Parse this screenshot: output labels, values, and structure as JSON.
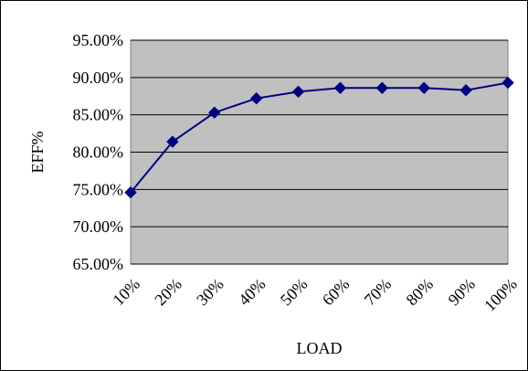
{
  "chart_data": {
    "type": "line",
    "xlabel": "LOAD",
    "ylabel": "EFF%",
    "categories": [
      "10%",
      "20%",
      "30%",
      "40%",
      "50%",
      "60%",
      "70%",
      "80%",
      "90%",
      "100%"
    ],
    "y_ticks": [
      "65.00%",
      "70.00%",
      "75.00%",
      "80.00%",
      "85.00%",
      "90.00%",
      "95.00%"
    ],
    "ylim": [
      65,
      95
    ],
    "grid": true,
    "plot_background": "#c0c0c0",
    "series": [
      {
        "color": "#000080",
        "marker": "diamond",
        "values": [
          74.6,
          81.4,
          85.3,
          87.2,
          88.1,
          88.6,
          88.6,
          88.6,
          88.3,
          89.3
        ]
      }
    ]
  }
}
